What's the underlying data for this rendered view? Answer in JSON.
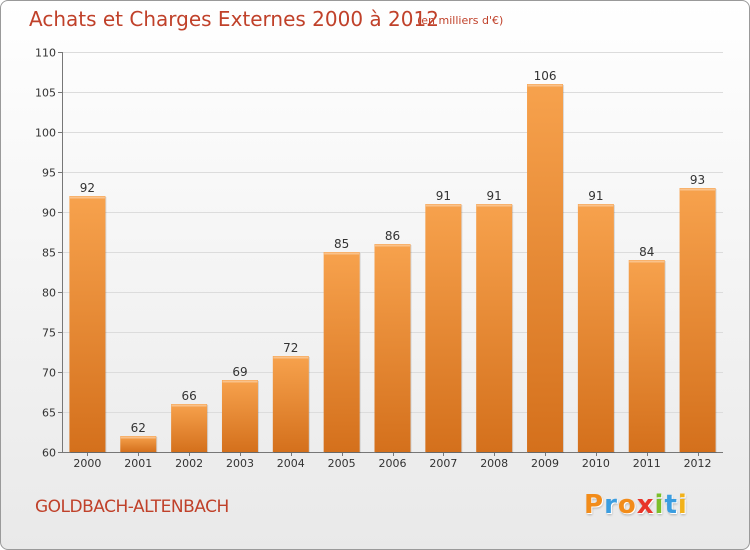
{
  "header": {
    "title": "Achats et Charges Externes 2000 à 2012",
    "subtitle": "(en milliers d'€)"
  },
  "footer": {
    "commune": "GOLDBACH-ALTENBACH",
    "logo_text": "Proxiti",
    "logo_colors": [
      "#f28c1a",
      "#3a9de0",
      "#f28c1a",
      "#e8352a",
      "#7bbf2a",
      "#3a9de0",
      "#f2b21a"
    ]
  },
  "chart_data": {
    "type": "bar",
    "title": "Achats et Charges Externes 2000 à 2012",
    "subtitle": "(en milliers d'€)",
    "categories": [
      "2000",
      "2001",
      "2002",
      "2003",
      "2004",
      "2005",
      "2006",
      "2007",
      "2008",
      "2009",
      "2010",
      "2011",
      "2012"
    ],
    "values": [
      92,
      62,
      66,
      69,
      72,
      85,
      86,
      91,
      91,
      106,
      91,
      84,
      93
    ],
    "ylim": [
      60,
      110
    ],
    "yticks": [
      60,
      65,
      70,
      75,
      80,
      85,
      90,
      95,
      100,
      105,
      110
    ],
    "grid": true,
    "bar_color_top": "#f7a24d",
    "bar_color_bottom": "#d4701c",
    "show_data_labels": true
  }
}
